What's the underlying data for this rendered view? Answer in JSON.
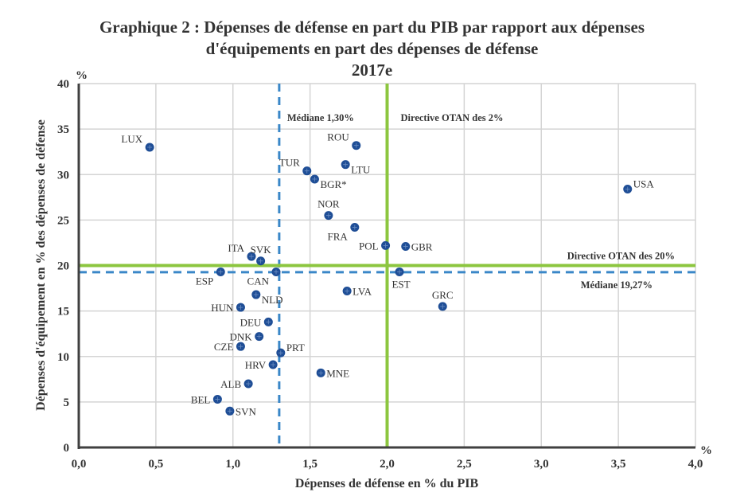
{
  "chart_data": {
    "type": "scatter",
    "title": "Graphique 2 : Dépenses de défense en part du PIB par rapport aux dépenses",
    "title_line2": "d'équipements en part des dépenses de défense",
    "subtitle": "2017e",
    "xlabel": "Dépenses de défense en % du PIB",
    "ylabel": "Dépenses d'équipement en % des dépenses de défense",
    "x_unit": "%",
    "y_unit": "%",
    "xlim": [
      0,
      4.0
    ],
    "ylim": [
      0,
      40
    ],
    "x_ticks": [
      0,
      0.5,
      1.0,
      1.5,
      2.0,
      2.5,
      3.0,
      3.5,
      4.0
    ],
    "x_tick_labels": [
      "0,0",
      "0,5",
      "1,0",
      "1,5",
      "2,0",
      "2,5",
      "3,0",
      "3,5",
      "4,0"
    ],
    "y_ticks": [
      0,
      5,
      10,
      15,
      20,
      25,
      30,
      35,
      40
    ],
    "y_tick_labels": [
      "0",
      "5",
      "10",
      "15",
      "20",
      "25",
      "30",
      "35",
      "40"
    ],
    "grid": true,
    "marker_color": "#1f4e96",
    "points": [
      {
        "label": "LUX",
        "x": 0.46,
        "y": 33.0,
        "pos": "left-top"
      },
      {
        "label": "ROU",
        "x": 1.8,
        "y": 33.2,
        "pos": "left-top"
      },
      {
        "label": "TUR",
        "x": 1.48,
        "y": 30.4,
        "pos": "left-top"
      },
      {
        "label": "LTU",
        "x": 1.73,
        "y": 31.1,
        "pos": "right-bottom"
      },
      {
        "label": "BGR*",
        "x": 1.53,
        "y": 29.5,
        "pos": "right-bottom"
      },
      {
        "label": "NOR",
        "x": 1.62,
        "y": 25.5,
        "pos": "top"
      },
      {
        "label": "FRA",
        "x": 1.79,
        "y": 24.2,
        "pos": "left-bottom"
      },
      {
        "label": "POL",
        "x": 1.99,
        "y": 22.2,
        "pos": "left"
      },
      {
        "label": "GBR",
        "x": 2.12,
        "y": 22.1,
        "pos": "right"
      },
      {
        "label": "USA",
        "x": 3.56,
        "y": 28.4,
        "pos": "right-top"
      },
      {
        "label": "ITA",
        "x": 1.12,
        "y": 21.0,
        "pos": "left-top"
      },
      {
        "label": "SVK",
        "x": 1.18,
        "y": 20.5,
        "pos": "top"
      },
      {
        "label": "ESP",
        "x": 0.92,
        "y": 19.3,
        "pos": "left-bottom"
      },
      {
        "label": "CAN",
        "x": 1.28,
        "y": 19.3,
        "pos": "left-bottom"
      },
      {
        "label": "EST",
        "x": 2.08,
        "y": 19.3,
        "pos": "bottom"
      },
      {
        "label": "LVA",
        "x": 1.74,
        "y": 17.2,
        "pos": "right"
      },
      {
        "label": "GRC",
        "x": 2.36,
        "y": 15.5,
        "pos": "top"
      },
      {
        "label": "NLD",
        "x": 1.15,
        "y": 16.8,
        "pos": "right-bottom"
      },
      {
        "label": "HUN",
        "x": 1.05,
        "y": 15.4,
        "pos": "left"
      },
      {
        "label": "DEU",
        "x": 1.23,
        "y": 13.8,
        "pos": "left"
      },
      {
        "label": "DNK",
        "x": 1.17,
        "y": 12.2,
        "pos": "left"
      },
      {
        "label": "CZE",
        "x": 1.05,
        "y": 11.1,
        "pos": "left"
      },
      {
        "label": "PRT",
        "x": 1.31,
        "y": 10.4,
        "pos": "right-top"
      },
      {
        "label": "HRV",
        "x": 1.26,
        "y": 9.1,
        "pos": "left"
      },
      {
        "label": "MNE",
        "x": 1.57,
        "y": 8.2,
        "pos": "right"
      },
      {
        "label": "ALB",
        "x": 1.1,
        "y": 7.0,
        "pos": "left"
      },
      {
        "label": "BEL",
        "x": 0.9,
        "y": 5.3,
        "pos": "left"
      },
      {
        "label": "SVN",
        "x": 0.98,
        "y": 4.0,
        "pos": "right"
      }
    ],
    "reference_lines": [
      {
        "name": "median-x",
        "orientation": "vertical",
        "value": 1.3,
        "style": "dashed",
        "color": "#3a87c8",
        "label": "Médiane 1,30%"
      },
      {
        "name": "otan-2pct",
        "orientation": "vertical",
        "value": 2.0,
        "style": "solid",
        "color": "#8cc63f",
        "label": "Directive OTAN des 2%"
      },
      {
        "name": "otan-20pct",
        "orientation": "horizontal",
        "value": 20.0,
        "style": "solid",
        "color": "#8cc63f",
        "label": "Directive OTAN des 20%"
      },
      {
        "name": "median-y",
        "orientation": "horizontal",
        "value": 19.27,
        "style": "dashed",
        "color": "#3a87c8",
        "label": "Médiane 19,27%"
      }
    ]
  }
}
